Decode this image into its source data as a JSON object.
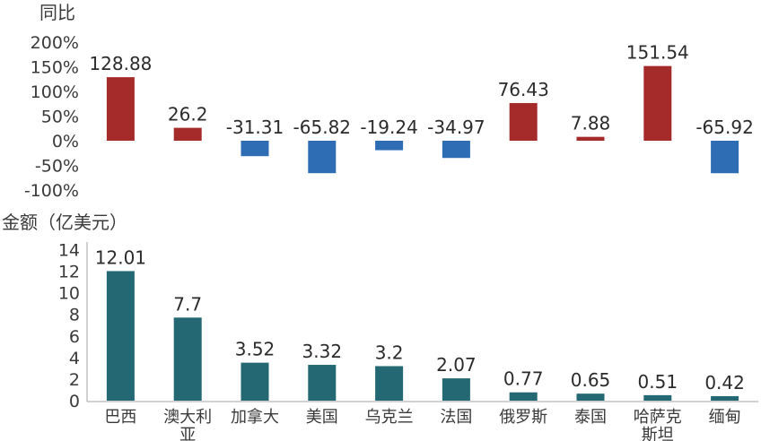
{
  "chart_data": [
    {
      "type": "bar",
      "title": "",
      "ylabel": "同比",
      "ylim": [
        -100,
        200
      ],
      "yticks": [
        "200%",
        "150%",
        "100%",
        "50%",
        "0%",
        "-50%",
        "-100%"
      ],
      "categories": [
        "巴西",
        "澳大利亚",
        "加拿大",
        "美国",
        "乌克兰",
        "法国",
        "俄罗斯",
        "泰国",
        "哈萨克斯坦",
        "缅甸"
      ],
      "values": [
        128.88,
        26.2,
        -31.31,
        -65.82,
        -19.24,
        -34.97,
        76.43,
        7.88,
        151.54,
        -65.92
      ],
      "data_labels": [
        "128.88",
        "26.2",
        "-31.31",
        "-65.82",
        "-19.24",
        "-34.97",
        "76.43",
        "7.88",
        "151.54",
        "-65.92"
      ],
      "colors": {
        "positive": "#a52a2a",
        "negative": "#2e6db4"
      }
    },
    {
      "type": "bar",
      "title": "",
      "ylabel": "金额（亿美元）",
      "ylim": [
        0,
        14
      ],
      "yticks": [
        "14",
        "12",
        "10",
        "8",
        "6",
        "4",
        "2",
        "0"
      ],
      "categories": [
        "巴西",
        "澳大利亚",
        "加拿大",
        "美国",
        "乌克兰",
        "法国",
        "俄罗斯",
        "泰国",
        "哈萨克斯坦",
        "缅甸"
      ],
      "category_labels": [
        [
          "巴西"
        ],
        [
          "澳大利",
          "亚"
        ],
        [
          "加拿大"
        ],
        [
          "美国"
        ],
        [
          "乌克兰"
        ],
        [
          "法国"
        ],
        [
          "俄罗斯"
        ],
        [
          "泰国"
        ],
        [
          "哈萨克",
          "斯坦"
        ],
        [
          "缅甸"
        ]
      ],
      "values": [
        12.01,
        7.7,
        3.52,
        3.32,
        3.2,
        2.07,
        0.77,
        0.65,
        0.51,
        0.42
      ],
      "data_labels": [
        "12.01",
        "7.7",
        "3.52",
        "3.32",
        "3.2",
        "2.07",
        "0.77",
        "0.65",
        "0.51",
        "0.42"
      ],
      "colors": {
        "bar": "#236872",
        "axis": "#a6a6a6"
      }
    }
  ]
}
